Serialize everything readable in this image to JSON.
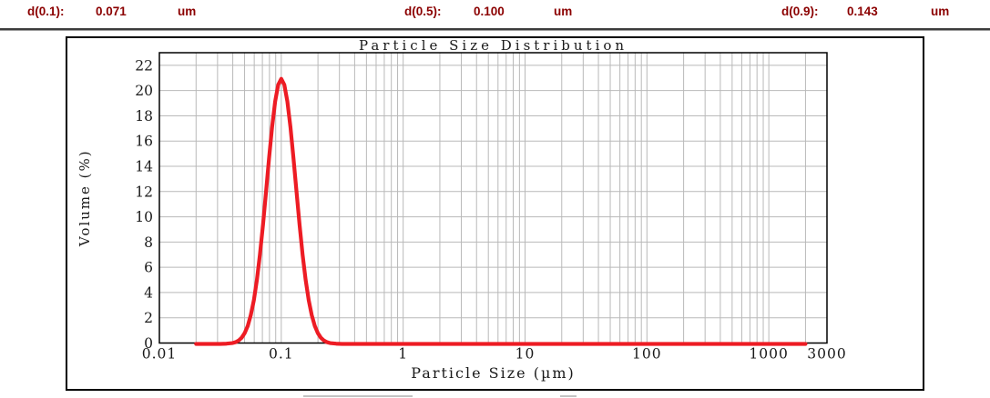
{
  "header": {
    "text_color": "#8B0000",
    "metrics": [
      {
        "label": "d(0.1):",
        "value": "0.071",
        "unit": "um"
      },
      {
        "label": "d(0.5):",
        "value": "0.100",
        "unit": "um"
      },
      {
        "label": "d(0.9):",
        "value": "0.143",
        "unit": "um"
      }
    ]
  },
  "chart_data": {
    "type": "line",
    "title": "Particle Size Distribution",
    "xlabel": "Particle Size (µm)",
    "ylabel": "Volume (%)",
    "x_scale": "log",
    "x_range": [
      0.01,
      3000
    ],
    "y_range": [
      0,
      23
    ],
    "x_ticks": [
      0.01,
      0.1,
      1,
      10,
      100,
      1000,
      3000
    ],
    "x_tick_labels": [
      "0.01",
      "0.1",
      "1",
      "10",
      "100",
      "1000",
      "3000"
    ],
    "y_ticks": [
      0,
      2,
      4,
      6,
      8,
      10,
      12,
      14,
      16,
      18,
      20,
      22
    ],
    "x_minor_multiples": [
      2,
      3,
      4,
      5,
      6,
      7,
      8,
      9
    ],
    "grid": true,
    "grid_color": "#b9b9b9",
    "axis_color": "#000000",
    "text_color": "#1a1a1a",
    "legend": "none",
    "series": [
      {
        "name": "volume-distribution",
        "color": "#ED1C24",
        "peak": {
          "x": 0.1,
          "y": 21
        },
        "points": [
          [
            0.02,
            0
          ],
          [
            0.025,
            0
          ],
          [
            0.0316,
            0
          ],
          [
            0.0355,
            0.02
          ],
          [
            0.0398,
            0.07
          ],
          [
            0.0422,
            0.14
          ],
          [
            0.0447,
            0.27
          ],
          [
            0.0473,
            0.49
          ],
          [
            0.0501,
            0.86
          ],
          [
            0.0531,
            1.43
          ],
          [
            0.0562,
            2.28
          ],
          [
            0.0596,
            3.47
          ],
          [
            0.0631,
            5.07
          ],
          [
            0.0668,
            7.07
          ],
          [
            0.0708,
            9.44
          ],
          [
            0.075,
            12.05
          ],
          [
            0.0794,
            14.72
          ],
          [
            0.0841,
            17.19
          ],
          [
            0.0891,
            19.21
          ],
          [
            0.0944,
            20.54
          ],
          [
            0.1,
            21.0
          ],
          [
            0.1059,
            20.54
          ],
          [
            0.1122,
            19.21
          ],
          [
            0.1189,
            17.19
          ],
          [
            0.1259,
            14.72
          ],
          [
            0.1334,
            12.05
          ],
          [
            0.1413,
            9.44
          ],
          [
            0.1496,
            7.07
          ],
          [
            0.1585,
            5.07
          ],
          [
            0.1679,
            3.47
          ],
          [
            0.1778,
            2.28
          ],
          [
            0.1884,
            1.43
          ],
          [
            0.1995,
            0.86
          ],
          [
            0.2113,
            0.49
          ],
          [
            0.2239,
            0.27
          ],
          [
            0.2371,
            0.14
          ],
          [
            0.2512,
            0.07
          ],
          [
            0.2818,
            0.02
          ],
          [
            0.3162,
            0
          ],
          [
            0.5,
            0
          ],
          [
            1,
            0
          ],
          [
            3,
            0
          ],
          [
            10,
            0
          ],
          [
            30,
            0
          ],
          [
            100,
            0
          ],
          [
            300,
            0
          ],
          [
            1000,
            0
          ],
          [
            2000,
            0
          ]
        ]
      }
    ]
  }
}
